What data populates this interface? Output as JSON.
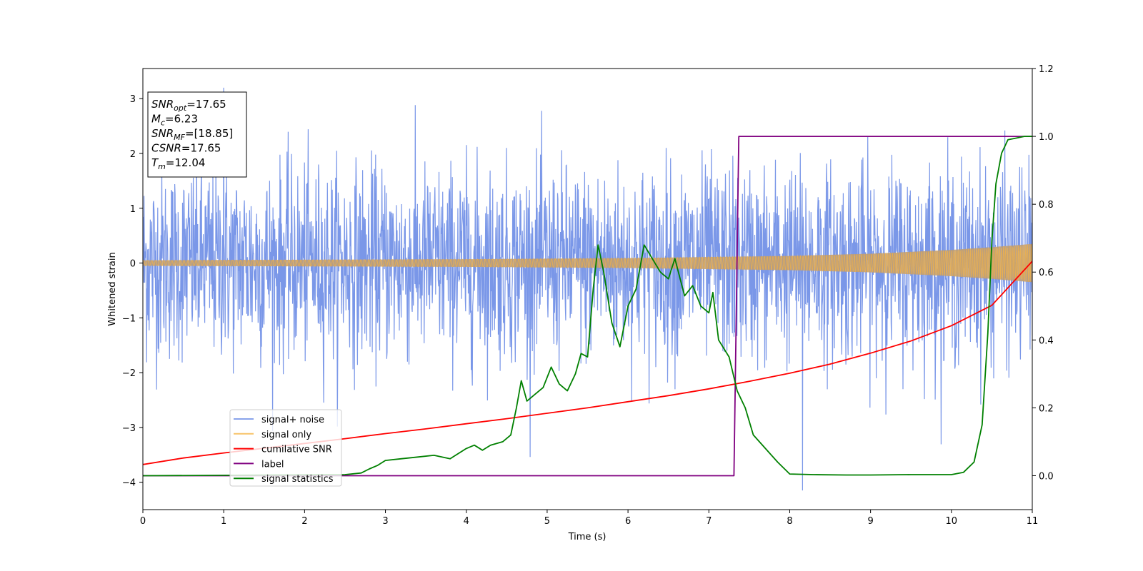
{
  "chart_data": {
    "type": "line",
    "xlabel": "Time (s)",
    "ylabel": "Whitened strain",
    "xlim": [
      0,
      11
    ],
    "ylim": [
      -4.5,
      3.55
    ],
    "y2lim": [
      -0.1,
      1.2
    ],
    "x_ticks": [
      "0",
      "1",
      "2",
      "3",
      "4",
      "5",
      "6",
      "7",
      "8",
      "9",
      "10",
      "11"
    ],
    "y_ticks": [
      "3",
      "2",
      "1",
      "0",
      "−1",
      "−2",
      "−3",
      "−4"
    ],
    "y2_ticks": [
      "1.2",
      "1.0",
      "0.8",
      "0.6",
      "0.4",
      "0.2",
      "0.0"
    ],
    "x_tick_values": [
      0,
      1,
      2,
      3,
      4,
      5,
      6,
      7,
      8,
      9,
      10,
      11
    ],
    "y_tick_values": [
      3,
      2,
      1,
      0,
      -1,
      -2,
      -3,
      -4
    ],
    "y2_tick_values": [
      1.2,
      1.0,
      0.8,
      0.6,
      0.4,
      0.2,
      0.0
    ],
    "legend_position": "lower-left",
    "colors": {
      "signal_noise": "#6b8ce6",
      "signal_only": "#f5b342",
      "signal_only_overlap": "#bd9c73",
      "cumulative_snr": "#ff0000",
      "label": "#800080",
      "signal_statistics": "#008000"
    },
    "annotation": {
      "lines": [
        {
          "sym": "SNR",
          "sub": "opt",
          "val": "=17.65"
        },
        {
          "sym": "M",
          "sub": "c",
          "val": "=6.23"
        },
        {
          "sym": "SNR",
          "sub": "MF",
          "val": "=[18.85]"
        },
        {
          "sym": "CSNR",
          "sub": "",
          "val": "=17.65"
        },
        {
          "sym": "T",
          "sub": "m",
          "val": "=12.04"
        }
      ]
    },
    "series": [
      {
        "name": "signal+ noise",
        "axis": "left",
        "description_values": {
          "typical_band": [
            -1.5,
            1.5
          ],
          "max": 3.2,
          "min": -4.15
        }
      },
      {
        "name": "signal only",
        "axis": "left",
        "envelope": [
          [
            0,
            0.05
          ],
          [
            2,
            0.06
          ],
          [
            4,
            0.07
          ],
          [
            6,
            0.09
          ],
          [
            8,
            0.13
          ],
          [
            9,
            0.17
          ],
          [
            10,
            0.24
          ],
          [
            10.5,
            0.29
          ],
          [
            11,
            0.35
          ]
        ]
      },
      {
        "name": "cumilative SNR",
        "axis": "right",
        "x": [
          0,
          0.5,
          1,
          1.5,
          2,
          2.5,
          3,
          3.5,
          4,
          4.5,
          5,
          5.5,
          6,
          6.5,
          7,
          7.5,
          8,
          8.5,
          9,
          9.5,
          10,
          10.5,
          11
        ],
        "values": [
          0.033,
          0.052,
          0.067,
          0.081,
          0.095,
          0.109,
          0.124,
          0.138,
          0.153,
          0.168,
          0.184,
          0.2,
          0.218,
          0.236,
          0.256,
          0.278,
          0.302,
          0.329,
          0.361,
          0.397,
          0.442,
          0.502,
          0.632
        ]
      },
      {
        "name": "label",
        "axis": "right",
        "x": [
          0,
          7.31,
          7.37,
          11
        ],
        "values": [
          0.0,
          0.0,
          1.0,
          1.0
        ]
      },
      {
        "name": "signal statistics",
        "axis": "right",
        "x": [
          0,
          2.5,
          2.7,
          2.8,
          2.9,
          3.0,
          3.2,
          3.4,
          3.6,
          3.8,
          4.0,
          4.1,
          4.2,
          4.3,
          4.45,
          4.55,
          4.62,
          4.68,
          4.75,
          4.85,
          4.95,
          5.05,
          5.15,
          5.25,
          5.35,
          5.42,
          5.5,
          5.57,
          5.63,
          5.7,
          5.8,
          5.9,
          6.0,
          6.1,
          6.2,
          6.3,
          6.4,
          6.5,
          6.58,
          6.7,
          6.8,
          6.9,
          7.0,
          7.05,
          7.12,
          7.25,
          7.35,
          7.45,
          7.55,
          7.7,
          7.85,
          8.0,
          8.3,
          8.7,
          9.0,
          9.5,
          10.0,
          10.15,
          10.28,
          10.38,
          10.45,
          10.5,
          10.55,
          10.62,
          10.7,
          10.8,
          10.9,
          11.0
        ],
        "values": [
          0.0,
          0.003,
          0.008,
          0.02,
          0.03,
          0.045,
          0.05,
          0.055,
          0.06,
          0.05,
          0.08,
          0.09,
          0.075,
          0.09,
          0.1,
          0.12,
          0.2,
          0.28,
          0.22,
          0.24,
          0.26,
          0.32,
          0.27,
          0.25,
          0.3,
          0.36,
          0.35,
          0.55,
          0.68,
          0.6,
          0.45,
          0.38,
          0.5,
          0.55,
          0.68,
          0.64,
          0.6,
          0.58,
          0.64,
          0.53,
          0.56,
          0.5,
          0.48,
          0.54,
          0.4,
          0.35,
          0.25,
          0.2,
          0.12,
          0.08,
          0.04,
          0.005,
          0.003,
          0.002,
          0.002,
          0.003,
          0.003,
          0.01,
          0.04,
          0.15,
          0.42,
          0.69,
          0.86,
          0.95,
          0.99,
          0.995,
          1.0,
          1.0
        ]
      }
    ]
  }
}
